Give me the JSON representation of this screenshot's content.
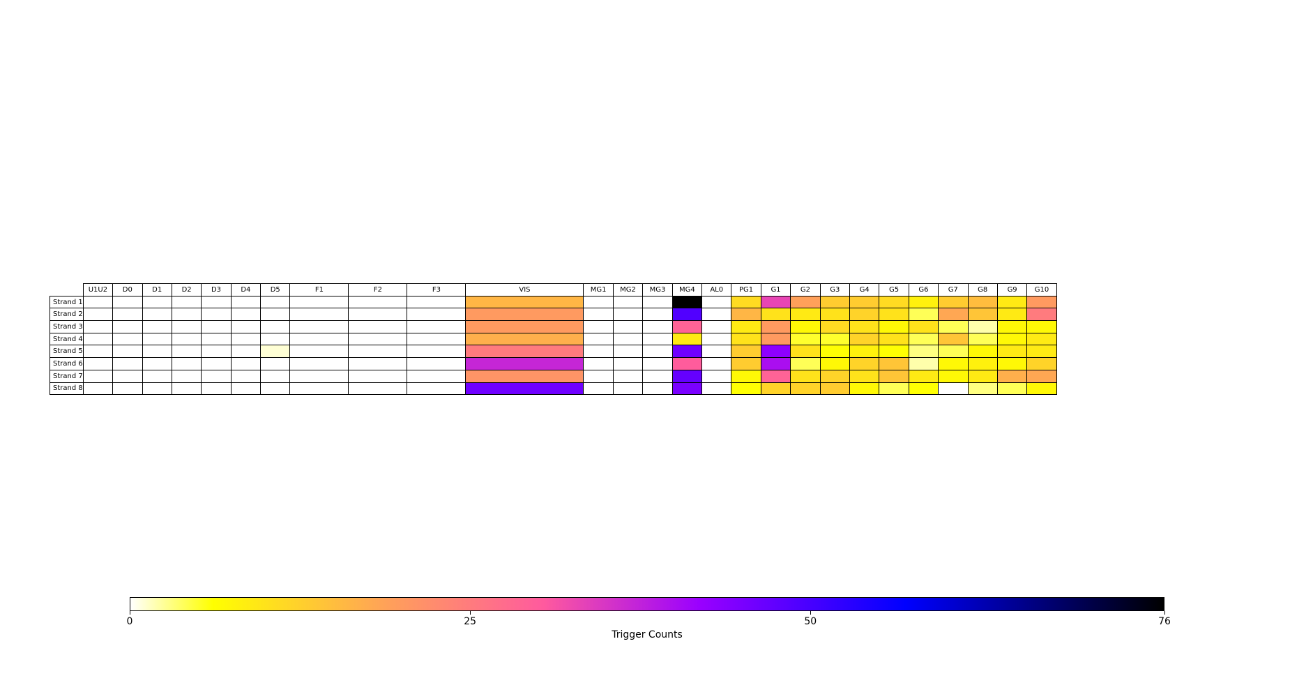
{
  "chart_data": {
    "type": "heatmap",
    "title": "",
    "columns": [
      "U1U2",
      "D0",
      "D1",
      "D2",
      "D3",
      "D4",
      "D5",
      "F1",
      "F2",
      "F3",
      "VIS",
      "MG1",
      "MG2",
      "MG3",
      "MG4",
      "AL0",
      "PG1",
      "G1",
      "G2",
      "G3",
      "G4",
      "G5",
      "G6",
      "G7",
      "G8",
      "G9",
      "G10"
    ],
    "rows": [
      "Strand 1",
      "Strand 2",
      "Strand 3",
      "Strand 4",
      "Strand 5",
      "Strand 6",
      "Strand 7",
      "Strand 8"
    ],
    "values": [
      [
        0,
        0,
        0,
        0,
        0,
        0,
        0,
        0,
        0,
        0,
        16,
        0,
        0,
        0,
        76,
        0,
        11,
        33,
        19,
        13,
        13,
        11,
        8,
        13,
        15,
        9,
        20
      ],
      [
        0,
        0,
        0,
        0,
        0,
        0,
        0,
        0,
        0,
        0,
        20,
        0,
        0,
        0,
        49,
        0,
        16,
        10,
        9,
        10,
        12,
        10,
        4,
        18,
        14,
        9,
        25
      ],
      [
        0,
        0,
        0,
        0,
        0,
        0,
        0,
        0,
        0,
        0,
        20,
        0,
        0,
        0,
        29,
        0,
        9,
        20,
        7,
        11,
        10,
        7,
        10,
        4,
        2,
        7,
        7
      ],
      [
        0,
        0,
        0,
        0,
        0,
        0,
        0,
        0,
        0,
        0,
        17,
        0,
        0,
        0,
        9,
        0,
        10,
        20,
        5,
        5,
        12,
        10,
        4,
        14,
        4,
        7,
        9
      ],
      [
        0,
        0,
        0,
        0,
        0,
        0,
        1,
        0,
        0,
        0,
        25,
        0,
        0,
        0,
        46,
        0,
        13,
        43,
        10,
        6,
        8,
        6,
        3,
        4,
        7,
        9,
        9
      ],
      [
        0,
        0,
        0,
        0,
        0,
        0,
        0,
        0,
        0,
        0,
        37,
        0,
        0,
        0,
        30,
        0,
        13,
        40,
        4,
        7,
        12,
        14,
        2,
        7,
        8,
        7,
        12
      ],
      [
        0,
        0,
        0,
        0,
        0,
        0,
        0,
        0,
        0,
        0,
        21,
        0,
        0,
        0,
        47,
        0,
        7,
        29,
        10,
        12,
        10,
        14,
        9,
        7,
        9,
        17,
        18
      ],
      [
        0,
        0,
        0,
        0,
        0,
        0,
        0,
        0,
        0,
        0,
        46,
        0,
        0,
        0,
        45,
        0,
        6,
        12,
        12,
        13,
        7,
        4,
        6,
        0,
        3,
        4,
        7
      ]
    ],
    "colormap": "gnuplot2_r",
    "vmin": 0,
    "vmax": 76,
    "colorbar": {
      "label": "Trigger Counts",
      "ticks": [
        0,
        25,
        50,
        76
      ],
      "orientation": "horizontal"
    },
    "colors": {
      "low": "#ffffff",
      "yellow": "#ffff00",
      "orange": "#ffa05a",
      "pink": "#ff5a9e",
      "purple": "#9a00ff",
      "blue": "#0000ff",
      "high": "#000000"
    }
  }
}
